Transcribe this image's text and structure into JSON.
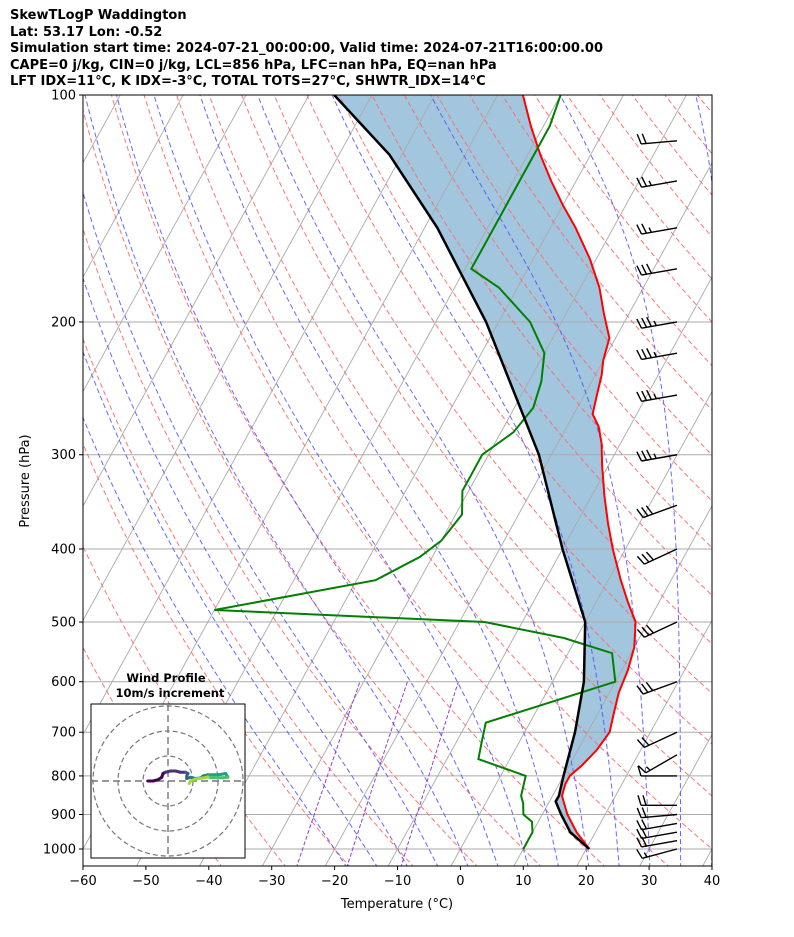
{
  "header": {
    "line1": "SkewTLogP Waddington",
    "line2": "Lat: 53.17   Lon: -0.52",
    "line3": "Simulation start time: 2024-07-21_00:00:00, Valid time: 2024-07-21T16:00:00.00",
    "line4": "CAPE=0 j/kg, CIN=0 j/kg, LCL=856 hPa, LFC=nan hPa, EQ=nan hPa",
    "line5": "LFT IDX=11°C, K IDX=-3°C, TOTAL TOTS=27°C, SHWTR_IDX=14°C"
  },
  "chart_data": {
    "type": "line",
    "subtype": "skew-T log-P",
    "xlabel": "Temperature (°C)",
    "ylabel": "Pressure (hPa)",
    "xlim": [
      -60,
      40
    ],
    "ylim": [
      1050,
      100
    ],
    "y_scale": "log",
    "grid": true,
    "x_ticks": [
      -60,
      -50,
      -40,
      -30,
      -20,
      -10,
      0,
      10,
      20,
      30,
      40
    ],
    "x_tick_labels": [
      "−60",
      "−50",
      "−40",
      "−30",
      "−20",
      "−10",
      "0",
      "10",
      "20",
      "30",
      "40"
    ],
    "y_ticks": [
      1000,
      900,
      800,
      700,
      600,
      500,
      400,
      300,
      200,
      100
    ],
    "y_tick_labels": [
      "1000",
      "900",
      "800",
      "700",
      "600",
      "500",
      "400",
      "300",
      "200",
      "100"
    ],
    "colors": {
      "temperature": "#ff0000",
      "dewpoint": "#008000",
      "parcel": "#000000",
      "shading": "#a3c6df",
      "dry_adiabats": "#ff6666",
      "moist_adiabats": "#4d4dff",
      "mixing_ratio": "#9b3bc8",
      "isotherms": "#aaaaaa"
    },
    "series": [
      {
        "key": "temperature",
        "points": [
          [
            1000,
            20.5
          ],
          [
            950,
            17
          ],
          [
            900,
            14
          ],
          [
            870,
            12.5
          ],
          [
            850,
            11.5
          ],
          [
            820,
            11
          ],
          [
            800,
            11
          ],
          [
            775,
            12
          ],
          [
            740,
            13
          ],
          [
            700,
            13.5
          ],
          [
            660,
            12.5
          ],
          [
            620,
            11.5
          ],
          [
            580,
            11
          ],
          [
            540,
            10
          ],
          [
            500,
            8
          ],
          [
            470,
            5
          ],
          [
            440,
            2
          ],
          [
            400,
            -2
          ],
          [
            370,
            -5
          ],
          [
            340,
            -8
          ],
          [
            310,
            -11
          ],
          [
            290,
            -13
          ],
          [
            275,
            -15
          ],
          [
            265,
            -17
          ],
          [
            250,
            -18
          ],
          [
            235,
            -19
          ],
          [
            225,
            -20
          ],
          [
            210,
            -21
          ],
          [
            195,
            -24
          ],
          [
            180,
            -27
          ],
          [
            165,
            -31
          ],
          [
            150,
            -36
          ],
          [
            140,
            -40
          ],
          [
            130,
            -44
          ],
          [
            120,
            -48
          ],
          [
            110,
            -52
          ],
          [
            100,
            -56
          ]
        ]
      },
      {
        "key": "dewpoint",
        "points": [
          [
            1000,
            10
          ],
          [
            950,
            10
          ],
          [
            920,
            9
          ],
          [
            900,
            7
          ],
          [
            870,
            6
          ],
          [
            850,
            5
          ],
          [
            800,
            4
          ],
          [
            760,
            -5
          ],
          [
            720,
            -6
          ],
          [
            680,
            -7
          ],
          [
            600,
            10
          ],
          [
            550,
            7
          ],
          [
            525,
            -2
          ],
          [
            500,
            -16
          ],
          [
            482,
            -60
          ],
          [
            440,
            -37
          ],
          [
            410,
            -32
          ],
          [
            390,
            -30
          ],
          [
            360,
            -29
          ],
          [
            335,
            -31
          ],
          [
            315,
            -31
          ],
          [
            300,
            -31
          ],
          [
            280,
            -28
          ],
          [
            260,
            -27
          ],
          [
            240,
            -28
          ],
          [
            220,
            -30
          ],
          [
            200,
            -35
          ],
          [
            180,
            -43
          ],
          [
            170,
            -49
          ],
          [
            150,
            -49
          ],
          [
            130,
            -49
          ],
          [
            110,
            -49
          ],
          [
            100,
            -50
          ]
        ]
      },
      {
        "key": "parcel",
        "points": [
          [
            1000,
            20.5
          ],
          [
            950,
            16
          ],
          [
            900,
            13
          ],
          [
            865,
            11
          ],
          [
            850,
            11
          ],
          [
            800,
            10
          ],
          [
            700,
            8
          ],
          [
            600,
            5
          ],
          [
            500,
            0
          ],
          [
            400,
            -10
          ],
          [
            300,
            -22
          ],
          [
            200,
            -42
          ],
          [
            150,
            -58
          ],
          [
            120,
            -72
          ],
          [
            100,
            -86
          ]
        ]
      }
    ],
    "winds": [
      {
        "p": 1000,
        "dir": 255,
        "spd": 15
      },
      {
        "p": 975,
        "dir": 260,
        "spd": 20
      },
      {
        "p": 950,
        "dir": 260,
        "spd": 20
      },
      {
        "p": 925,
        "dir": 260,
        "spd": 20
      },
      {
        "p": 900,
        "dir": 265,
        "spd": 20
      },
      {
        "p": 875,
        "dir": 270,
        "spd": 20
      },
      {
        "p": 800,
        "dir": 270,
        "spd": 10
      },
      {
        "p": 750,
        "dir": 240,
        "spd": 15
      },
      {
        "p": 700,
        "dir": 245,
        "spd": 20
      },
      {
        "p": 600,
        "dir": 250,
        "spd": 30
      },
      {
        "p": 500,
        "dir": 245,
        "spd": 30
      },
      {
        "p": 400,
        "dir": 245,
        "spd": 30
      },
      {
        "p": 350,
        "dir": 250,
        "spd": 30
      },
      {
        "p": 300,
        "dir": 260,
        "spd": 35
      },
      {
        "p": 250,
        "dir": 260,
        "spd": 35
      },
      {
        "p": 220,
        "dir": 260,
        "spd": 35
      },
      {
        "p": 200,
        "dir": 260,
        "spd": 35
      },
      {
        "p": 170,
        "dir": 260,
        "spd": 30
      },
      {
        "p": 150,
        "dir": 260,
        "spd": 25
      },
      {
        "p": 130,
        "dir": 260,
        "spd": 25
      },
      {
        "p": 115,
        "dir": 265,
        "spd": 20
      }
    ],
    "hodograph": {
      "title": "Wind Profile",
      "subtitle": "10m/s increment",
      "ring_step_ms": 10,
      "points": [
        [
          0,
          0
        ],
        [
          2,
          0
        ],
        [
          4,
          0.5
        ],
        [
          5.5,
          1.5
        ],
        [
          6,
          3
        ],
        [
          7,
          3.5
        ],
        [
          9,
          4
        ],
        [
          11,
          4
        ],
        [
          13,
          3.5
        ],
        [
          15,
          3.5
        ],
        [
          16,
          3
        ],
        [
          15.5,
          2
        ],
        [
          15.5,
          1
        ],
        [
          17,
          1.5
        ],
        [
          19,
          1
        ],
        [
          21,
          1.2
        ],
        [
          22,
          2
        ],
        [
          24,
          2.5
        ],
        [
          27,
          2.5
        ],
        [
          29,
          2.6
        ],
        [
          31,
          3
        ],
        [
          32,
          1.5
        ],
        [
          30,
          1.3
        ],
        [
          27,
          1.4
        ],
        [
          25,
          1.4
        ],
        [
          24,
          1.6
        ],
        [
          22,
          1.2
        ],
        [
          19,
          0.8
        ],
        [
          17,
          0
        ],
        [
          16.5,
          -1
        ]
      ]
    }
  }
}
